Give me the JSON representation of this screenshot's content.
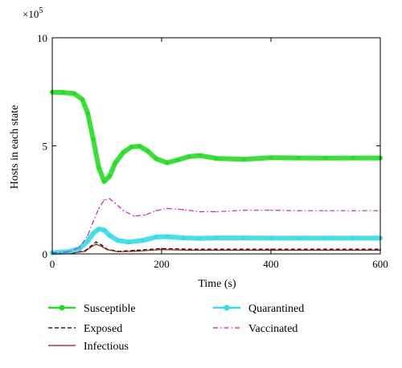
{
  "chart_data": {
    "type": "line",
    "title": "",
    "xlabel": "Time (s)",
    "ylabel": "Hosts in each state",
    "exponent_label_base": "×10",
    "exponent_label_power": "5",
    "xlim": [
      0,
      600
    ],
    "ylim": [
      0,
      10
    ],
    "y_scale_factor": 100000,
    "xticks": [
      0,
      200,
      400,
      600
    ],
    "yticks": [
      0,
      5,
      10
    ],
    "xtick_labels": [
      "0",
      "200",
      "400",
      "600"
    ],
    "ytick_labels": [
      "0",
      "5",
      "10"
    ],
    "grid": false,
    "legend_position": "bottom",
    "series": [
      {
        "name": "Susceptible",
        "color": "#22dd22",
        "style": "solid-markers",
        "x": [
          0,
          20,
          40,
          55,
          65,
          75,
          85,
          95,
          105,
          115,
          130,
          145,
          160,
          175,
          190,
          210,
          230,
          250,
          270,
          300,
          350,
          400,
          450,
          500,
          550,
          600
        ],
        "y": [
          7.48,
          7.47,
          7.42,
          7.15,
          6.5,
          5.3,
          4.0,
          3.35,
          3.6,
          4.2,
          4.7,
          4.95,
          4.98,
          4.75,
          4.4,
          4.22,
          4.35,
          4.5,
          4.55,
          4.42,
          4.38,
          4.45,
          4.44,
          4.43,
          4.44,
          4.44
        ]
      },
      {
        "name": "Exposed",
        "color": "#000000",
        "style": "dashed",
        "x": [
          0,
          40,
          60,
          70,
          80,
          90,
          100,
          120,
          150,
          200,
          250,
          300,
          400,
          500,
          600
        ],
        "y": [
          0.02,
          0.05,
          0.15,
          0.35,
          0.55,
          0.42,
          0.22,
          0.12,
          0.16,
          0.25,
          0.22,
          0.22,
          0.22,
          0.22,
          0.22
        ]
      },
      {
        "name": "Infectious",
        "color": "#aa1111",
        "style": "solid",
        "x": [
          0,
          40,
          60,
          70,
          80,
          90,
          100,
          120,
          150,
          200,
          250,
          300,
          400,
          500,
          600
        ],
        "y": [
          0.02,
          0.05,
          0.12,
          0.3,
          0.45,
          0.35,
          0.2,
          0.1,
          0.12,
          0.2,
          0.17,
          0.17,
          0.17,
          0.17,
          0.17
        ]
      },
      {
        "name": "Quarantined",
        "color": "#33dde8",
        "style": "solid-markers",
        "x": [
          0,
          30,
          50,
          65,
          75,
          85,
          95,
          105,
          120,
          140,
          165,
          190,
          210,
          240,
          270,
          300,
          350,
          400,
          450,
          500,
          550,
          600
        ],
        "y": [
          0.05,
          0.1,
          0.25,
          0.6,
          0.95,
          1.15,
          1.1,
          0.85,
          0.62,
          0.55,
          0.62,
          0.78,
          0.8,
          0.74,
          0.72,
          0.74,
          0.74,
          0.73,
          0.73,
          0.73,
          0.73,
          0.73
        ]
      },
      {
        "name": "Vaccinated",
        "color": "#cc22cc",
        "style": "dashdot",
        "x": [
          0,
          30,
          50,
          65,
          75,
          85,
          95,
          105,
          115,
          130,
          150,
          170,
          190,
          210,
          240,
          270,
          300,
          350,
          400,
          450,
          500,
          550,
          600
        ],
        "y": [
          0.05,
          0.1,
          0.3,
          0.85,
          1.5,
          2.1,
          2.5,
          2.55,
          2.35,
          2.0,
          1.75,
          1.8,
          2.0,
          2.1,
          2.05,
          1.95,
          1.95,
          2.02,
          2.02,
          2.0,
          2.0,
          2.0,
          2.0
        ]
      }
    ]
  },
  "legend": [
    {
      "label": "Susceptible",
      "color": "#22dd22",
      "style": "solid-markers"
    },
    {
      "label": "Exposed",
      "color": "#000000",
      "style": "dashed"
    },
    {
      "label": "Infectious",
      "color": "#aa1111",
      "style": "solid"
    },
    {
      "label": "Quarantined",
      "color": "#33dde8",
      "style": "solid-markers"
    },
    {
      "label": "Vaccinated",
      "color": "#cc22cc",
      "style": "dashdot"
    }
  ]
}
